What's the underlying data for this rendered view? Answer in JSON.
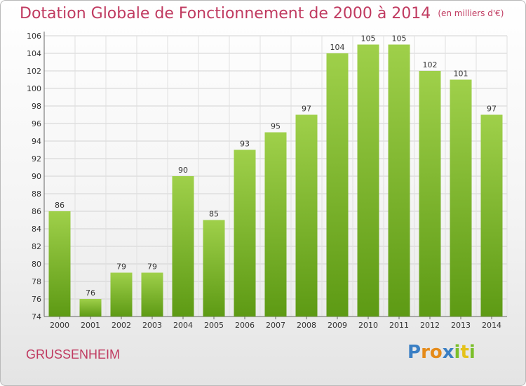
{
  "header": {
    "title": "Dotation Globale de Fonctionnement de 2000 à 2014",
    "unit_note": "(en milliers d'€)"
  },
  "footer": {
    "commune": "GRUSSENHEIM",
    "logo_text": "Proxiti"
  },
  "colors": {
    "accent": "#c03a60",
    "bar_top": "#9fd04a",
    "bar_bottom": "#5d9a14"
  },
  "chart_data": {
    "type": "bar",
    "categories": [
      "2000",
      "2001",
      "2002",
      "2003",
      "2004",
      "2005",
      "2006",
      "2007",
      "2008",
      "2009",
      "2010",
      "2011",
      "2012",
      "2013",
      "2014"
    ],
    "values": [
      86,
      76,
      79,
      79,
      90,
      85,
      93,
      95,
      97,
      104,
      105,
      105,
      102,
      101,
      97
    ],
    "title": "Dotation Globale de Fonctionnement de 2000 à 2014",
    "subtitle": "(en milliers d'€)",
    "xlabel": "",
    "ylabel": "",
    "ylim": [
      74,
      106
    ],
    "yticks": [
      74,
      76,
      78,
      80,
      82,
      84,
      86,
      88,
      90,
      92,
      94,
      96,
      98,
      100,
      102,
      104,
      106
    ],
    "grid": true,
    "data_labels": true
  }
}
